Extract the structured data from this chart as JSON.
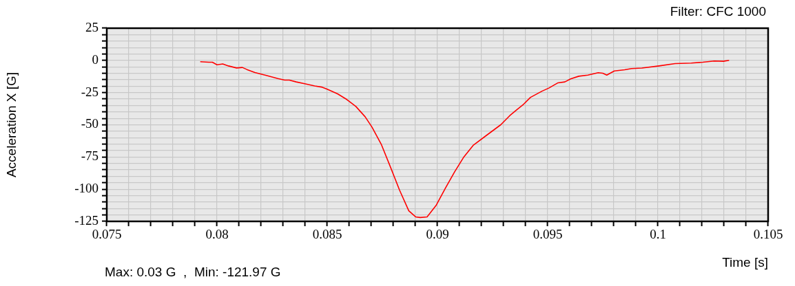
{
  "chart_data": {
    "type": "line",
    "xlabel": "Time [s]",
    "ylabel": "Acceleration X [G]",
    "annotations": [
      "Filter: CFC 1000",
      "Max: 0.03 G  ,  Min: -121.97 G"
    ],
    "xlim": [
      0.075,
      0.105
    ],
    "ylim": [
      -125,
      25
    ],
    "xticks": [
      0.075,
      {
        "value": 0.076,
        "label": null
      },
      {
        "value": 0.077,
        "label": null
      },
      {
        "value": 0.078,
        "label": null
      },
      {
        "value": 0.079,
        "label": null
      },
      0.08,
      {
        "value": 0.081,
        "label": null
      },
      {
        "value": 0.082,
        "label": null
      },
      {
        "value": 0.083,
        "label": null
      },
      {
        "value": 0.084,
        "label": null
      },
      0.085,
      {
        "value": 0.086,
        "label": null
      },
      {
        "value": 0.087,
        "label": null
      },
      {
        "value": 0.088,
        "label": null
      },
      {
        "value": 0.089,
        "label": null
      },
      0.09,
      {
        "value": 0.091,
        "label": null
      },
      {
        "value": 0.092,
        "label": null
      },
      {
        "value": 0.093,
        "label": null
      },
      {
        "value": 0.094,
        "label": null
      },
      0.095,
      {
        "value": 0.096,
        "label": null
      },
      {
        "value": 0.097,
        "label": null
      },
      {
        "value": 0.098,
        "label": null
      },
      {
        "value": 0.099,
        "label": null
      },
      0.1,
      {
        "value": 0.101,
        "label": null
      },
      {
        "value": 0.102,
        "label": null
      },
      {
        "value": 0.103,
        "label": null
      },
      {
        "value": 0.104,
        "label": null
      },
      0.105
    ],
    "yticks": [
      25,
      {
        "value": 20,
        "label": null
      },
      {
        "value": 15,
        "label": null
      },
      {
        "value": 10,
        "label": null
      },
      {
        "value": 5,
        "label": null
      },
      0,
      {
        "value": -5,
        "label": null
      },
      {
        "value": -10,
        "label": null
      },
      {
        "value": -15,
        "label": null
      },
      {
        "value": -20,
        "label": null
      },
      -25,
      {
        "value": -30,
        "label": null
      },
      {
        "value": -35,
        "label": null
      },
      {
        "value": -40,
        "label": null
      },
      {
        "value": -45,
        "label": null
      },
      -50,
      {
        "value": -55,
        "label": null
      },
      {
        "value": -60,
        "label": null
      },
      {
        "value": -65,
        "label": null
      },
      {
        "value": -70,
        "label": null
      },
      -75,
      {
        "value": -80,
        "label": null
      },
      {
        "value": -85,
        "label": null
      },
      {
        "value": -90,
        "label": null
      },
      {
        "value": -95,
        "label": null
      },
      -100,
      {
        "value": -105,
        "label": null
      },
      {
        "value": -110,
        "label": null
      },
      {
        "value": -115,
        "label": null
      },
      {
        "value": -120,
        "label": null
      },
      -125
    ],
    "grid": true,
    "legend": false,
    "marker": "none",
    "line_style": "solid",
    "x": [
      0.07924,
      0.07963,
      0.07979,
      0.08,
      0.08026,
      0.08052,
      0.08089,
      0.08115,
      0.08136,
      0.08172,
      0.08224,
      0.08276,
      0.08307,
      0.08328,
      0.08359,
      0.08401,
      0.08443,
      0.08474,
      0.085,
      0.08547,
      0.08589,
      0.0863,
      0.08672,
      0.08703,
      0.08745,
      0.08787,
      0.08828,
      0.0887,
      0.08901,
      0.08922,
      0.08953,
      0.08995,
      0.09037,
      0.09078,
      0.0912,
      0.09162,
      0.09224,
      0.09287,
      0.09328,
      0.09359,
      0.09391,
      0.09422,
      0.09474,
      0.09505,
      0.09547,
      0.09578,
      0.09604,
      0.09641,
      0.09682,
      0.09729,
      0.0975,
      0.09768,
      0.09802,
      0.09849,
      0.0988,
      0.09927,
      0.10005,
      0.10078,
      0.10151,
      0.10203,
      0.10255,
      0.10297,
      0.10323
    ],
    "series": [
      {
        "color": "#ff0000",
        "values": [
          -1,
          -1.4,
          -1.4,
          -3.4,
          -2.8,
          -4.3,
          -5.9,
          -5.5,
          -7.1,
          -9.4,
          -11.7,
          -14.1,
          -15.3,
          -15.3,
          -16.7,
          -18.2,
          -19.8,
          -20.7,
          -22.4,
          -26,
          -30.4,
          -35.8,
          -43.8,
          -51.8,
          -65.1,
          -82.9,
          -100.7,
          -116.8,
          -121.5,
          -122,
          -121.5,
          -112.3,
          -98.9,
          -86.5,
          -74.9,
          -66,
          -58,
          -50,
          -42.9,
          -38.4,
          -34,
          -28.7,
          -23.9,
          -21.5,
          -17.4,
          -16.7,
          -14.4,
          -12.3,
          -11.4,
          -9.6,
          -10,
          -11.4,
          -8.2,
          -7.3,
          -6.4,
          -6,
          -4.3,
          -2.5,
          -2.1,
          -1.4,
          -0.5,
          -0.7,
          0
        ]
      }
    ]
  }
}
